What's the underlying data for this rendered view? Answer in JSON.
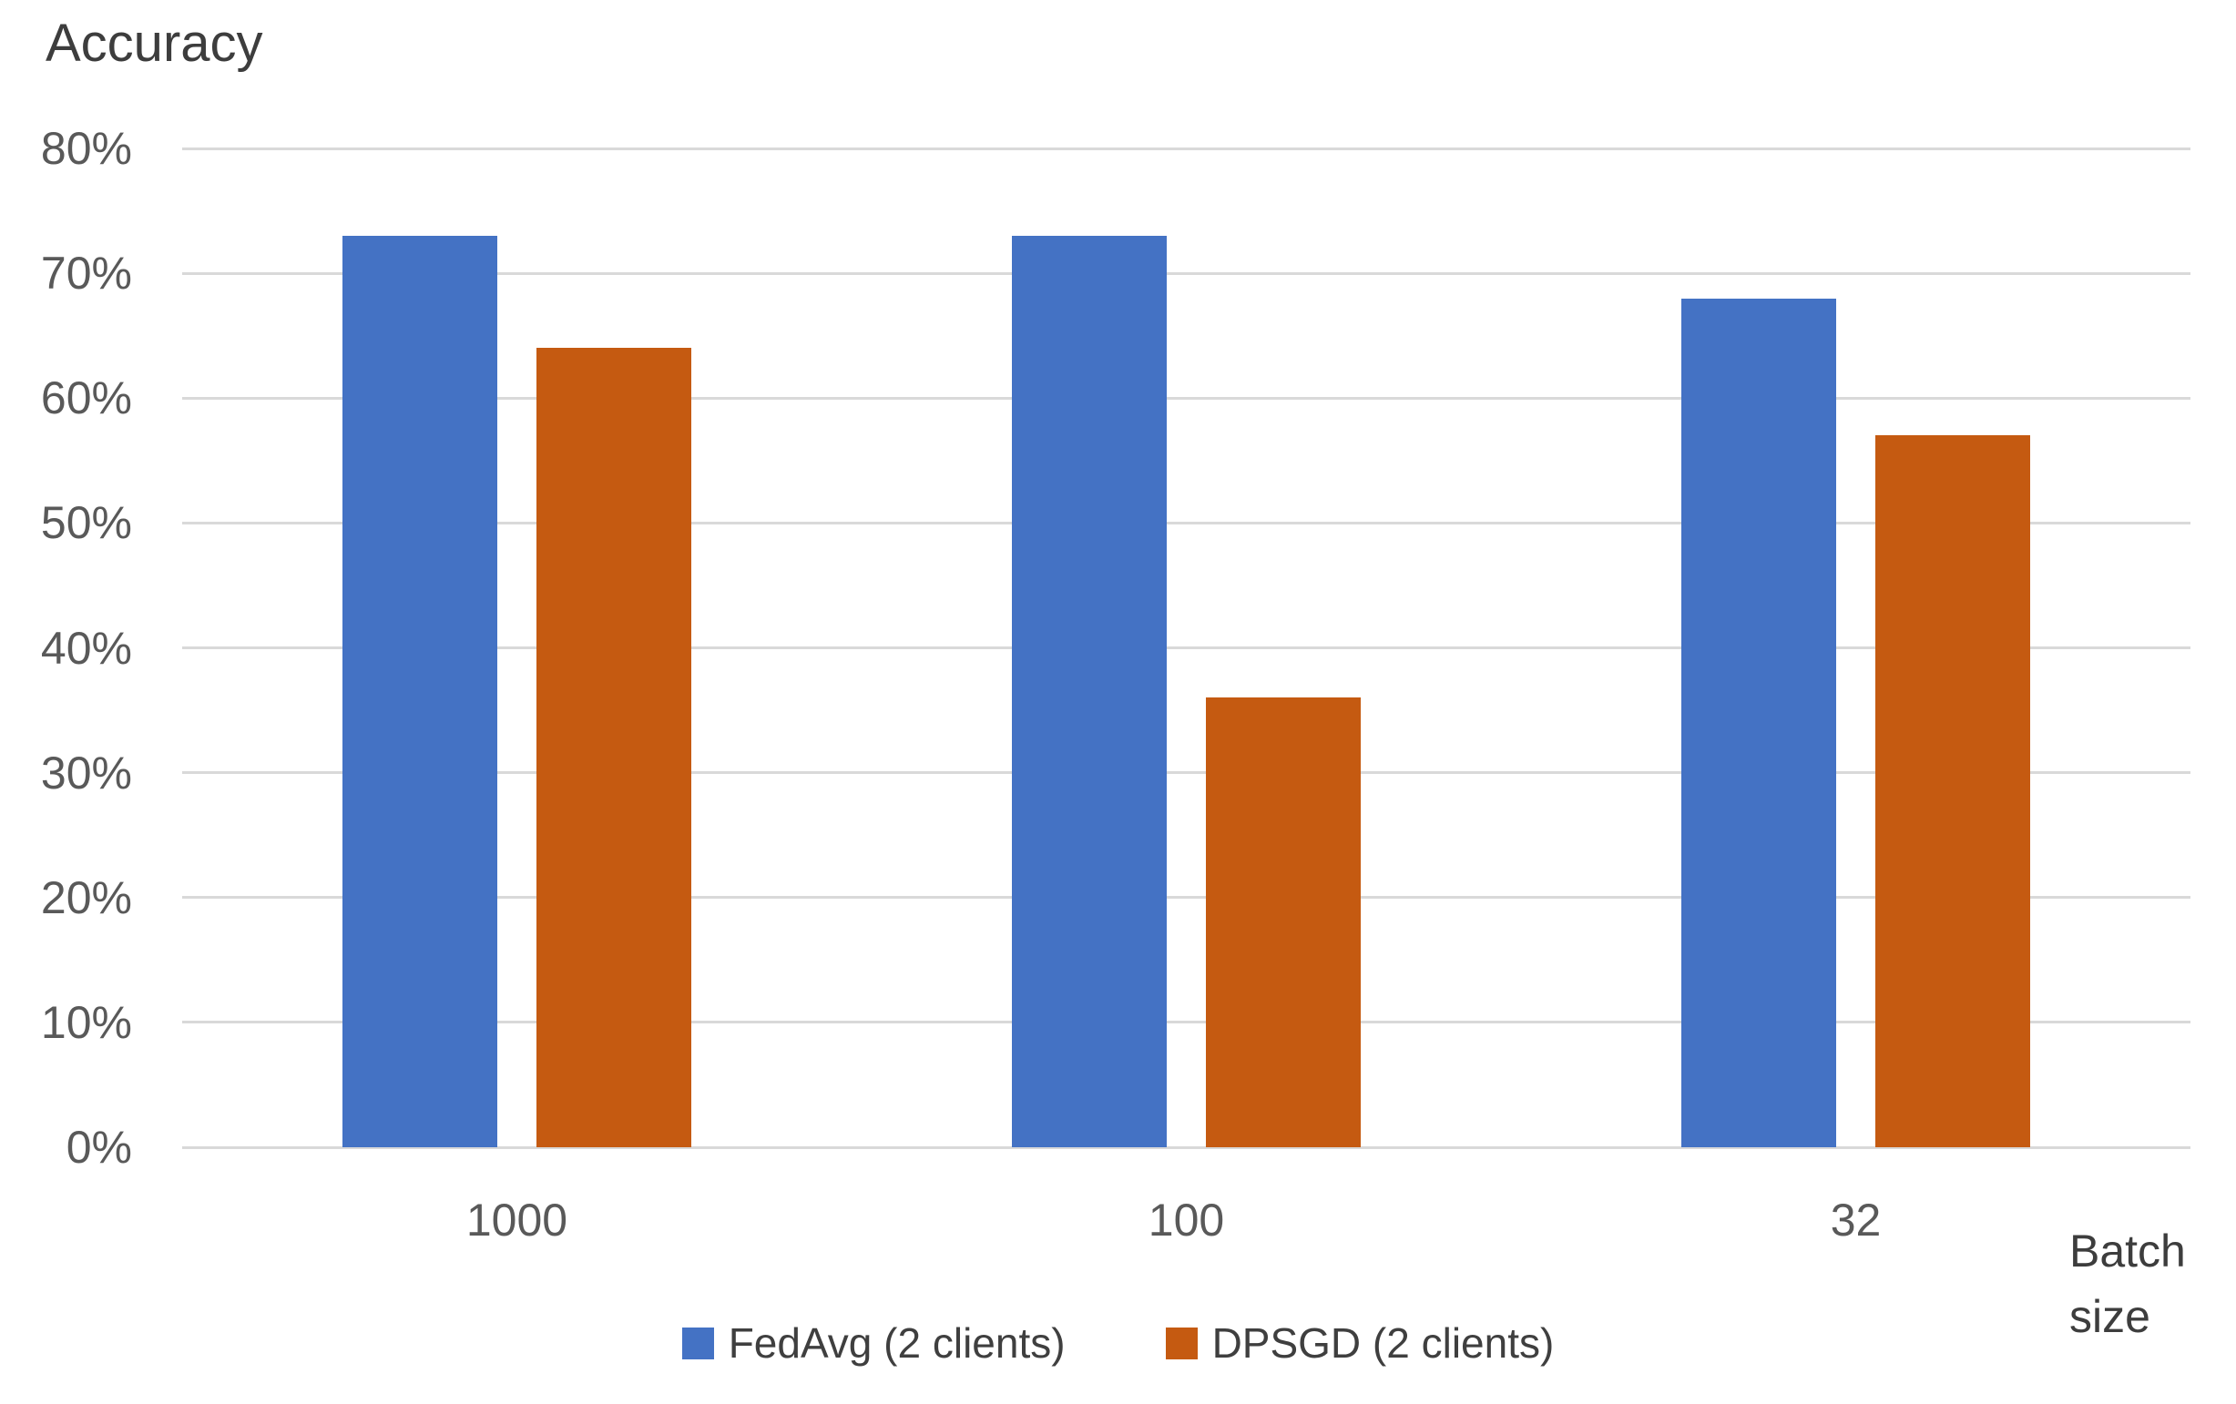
{
  "chart_data": {
    "type": "bar",
    "title": "Accuracy",
    "xlabel": "Batch size",
    "xlabel_lines": [
      "Batch",
      "size"
    ],
    "ylabel": "Accuracy",
    "categories": [
      "1000",
      "100",
      "32"
    ],
    "series": [
      {
        "name": "FedAvg (2 clients)",
        "color": "#4472C4",
        "values": [
          73,
          73,
          68
        ]
      },
      {
        "name": "DPSGD (2 clients)",
        "color": "#C55A11",
        "values": [
          64,
          36,
          57
        ]
      }
    ],
    "ylim": [
      0,
      80
    ],
    "ytick_step": 10,
    "ytick_labels": [
      "0%",
      "10%",
      "20%",
      "30%",
      "40%",
      "50%",
      "60%",
      "70%",
      "80%"
    ],
    "grid": true,
    "legend_position": "bottom",
    "colors": {
      "gridline": "#D9D9D9",
      "tick_text": "#595959",
      "title_text": "#3D3D3D",
      "background": "#FFFFFF"
    }
  }
}
